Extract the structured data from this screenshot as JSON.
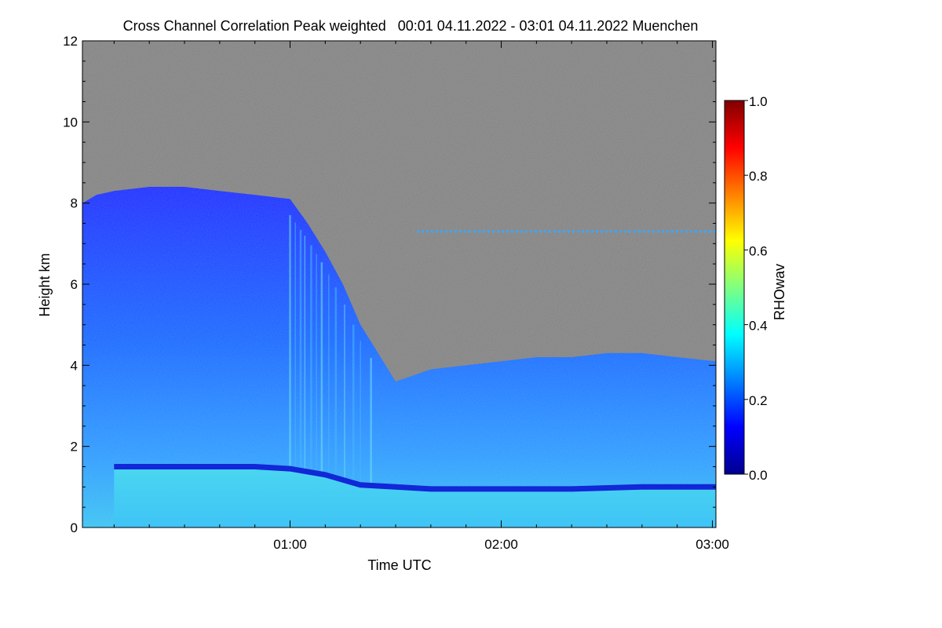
{
  "chart_data": {
    "type": "heatmap",
    "title": "Cross Channel Correlation Peak weighted   00:01 04.11.2022 - 03:01 04.11.2022 Muenchen",
    "xlabel": "Time UTC",
    "ylabel": "Height km",
    "x_range_minutes": [
      1,
      181
    ],
    "ylim": [
      0,
      12
    ],
    "x_ticks": [
      {
        "label": "01:00",
        "minutes": 60
      },
      {
        "label": "02:00",
        "minutes": 120
      },
      {
        "label": "03:00",
        "minutes": 180
      }
    ],
    "y_ticks": [
      {
        "label": "0",
        "value": 0
      },
      {
        "label": "2",
        "value": 2
      },
      {
        "label": "4",
        "value": 4
      },
      {
        "label": "6",
        "value": 6
      },
      {
        "label": "8",
        "value": 8
      },
      {
        "label": "10",
        "value": 10
      },
      {
        "label": "12",
        "value": 12
      }
    ],
    "colorbar": {
      "label": "RHOwav",
      "range": [
        0,
        1
      ],
      "ticks": [
        "0.0",
        "0.2",
        "0.4",
        "0.6",
        "0.8",
        "1.0"
      ],
      "colormap": [
        "#00008f",
        "#0000ff",
        "#0080ff",
        "#00ffff",
        "#80ff80",
        "#ffff00",
        "#ff8000",
        "#ff0000",
        "#800000"
      ]
    },
    "no_data_color": "#808080",
    "layers": {
      "cloud_top_km": [
        [
          1,
          8.0
        ],
        [
          5,
          8.2
        ],
        [
          10,
          8.3
        ],
        [
          20,
          8.4
        ],
        [
          30,
          8.4
        ],
        [
          40,
          8.3
        ],
        [
          50,
          8.2
        ],
        [
          60,
          8.1
        ],
        [
          65,
          7.5
        ],
        [
          70,
          6.8
        ],
        [
          75,
          6.0
        ],
        [
          80,
          5.0
        ],
        [
          85,
          4.3
        ],
        [
          90,
          3.6
        ],
        [
          100,
          3.9
        ],
        [
          110,
          4.0
        ],
        [
          120,
          4.1
        ],
        [
          130,
          4.2
        ],
        [
          140,
          4.2
        ],
        [
          150,
          4.3
        ],
        [
          160,
          4.3
        ],
        [
          170,
          4.2
        ],
        [
          181,
          4.1
        ]
      ],
      "boundary_layer_top_km": [
        [
          10,
          1.5
        ],
        [
          30,
          1.5
        ],
        [
          50,
          1.5
        ],
        [
          60,
          1.45
        ],
        [
          70,
          1.3
        ],
        [
          80,
          1.05
        ],
        [
          90,
          1.0
        ],
        [
          100,
          0.95
        ],
        [
          120,
          0.95
        ],
        [
          140,
          0.95
        ],
        [
          160,
          1.0
        ],
        [
          181,
          1.0
        ]
      ],
      "thin_layer_km": 7.3,
      "thin_layer_start_minutes": 96
    }
  }
}
